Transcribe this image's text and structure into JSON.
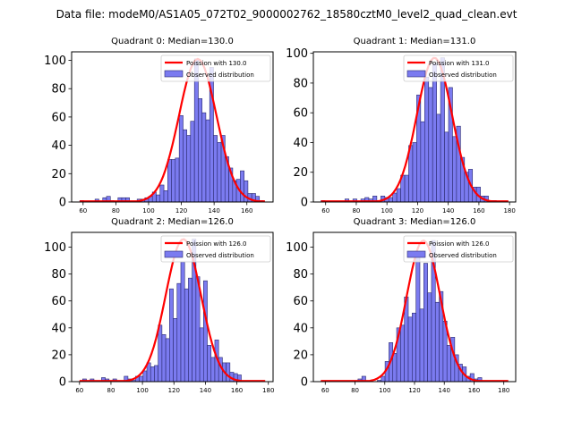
{
  "figure": {
    "suptitle": "Data file: modeM0/AS1A05_072T02_9000002762_18580cztM0_level2_quad_clean.evt"
  },
  "colors": {
    "bar_fill": "#7b7bf0",
    "bar_edge": "#2a2a6e",
    "poisson_line": "#ff0000"
  },
  "chart_data": [
    {
      "type": "bar",
      "title": "Quadrant 0: Median=130.0",
      "legend": {
        "line": "Poission with 130.0",
        "bars": "Observed distribution",
        "placement": "upper-right"
      },
      "xlim": [
        53,
        176
      ],
      "ylim": [
        0,
        106
      ],
      "xticks": [
        60,
        80,
        100,
        120,
        140,
        160
      ],
      "yticks": [
        0,
        20,
        40,
        60,
        80,
        100
      ],
      "bin_width": 2.35,
      "bins": [
        [
          58,
          1
        ],
        [
          60.3,
          0
        ],
        [
          62.6,
          0
        ],
        [
          65,
          0
        ],
        [
          67.3,
          2
        ],
        [
          69.6,
          0
        ],
        [
          72,
          3
        ],
        [
          74.3,
          4
        ],
        [
          76.6,
          1
        ],
        [
          79,
          0
        ],
        [
          81.3,
          3
        ],
        [
          83.6,
          3
        ],
        [
          86,
          3
        ],
        [
          88.3,
          0
        ],
        [
          90.7,
          0
        ],
        [
          93,
          2
        ],
        [
          95.3,
          2
        ],
        [
          97.7,
          3
        ],
        [
          100,
          4
        ],
        [
          102.3,
          7
        ],
        [
          104.7,
          5
        ],
        [
          107,
          12
        ],
        [
          109.3,
          8
        ],
        [
          111.7,
          30
        ],
        [
          114,
          30
        ],
        [
          116.3,
          31
        ],
        [
          118.7,
          61
        ],
        [
          121,
          51
        ],
        [
          123.3,
          47
        ],
        [
          125.6,
          57
        ],
        [
          128,
          101
        ],
        [
          130.3,
          73
        ],
        [
          132.6,
          63
        ],
        [
          135,
          58
        ],
        [
          137.3,
          95
        ],
        [
          139.6,
          47
        ],
        [
          142,
          42
        ],
        [
          144.3,
          47
        ],
        [
          146.6,
          32
        ],
        [
          149,
          24
        ],
        [
          151.3,
          15
        ],
        [
          153.6,
          16
        ],
        [
          156,
          22
        ],
        [
          158.3,
          15
        ],
        [
          160.6,
          6
        ],
        [
          163,
          6
        ],
        [
          165.3,
          4
        ],
        [
          167.7,
          1
        ]
      ],
      "poisson_mean": 130.0,
      "poisson_peak": 101
    },
    {
      "type": "bar",
      "title": "Quadrant 1: Median=131.0",
      "legend": {
        "line": "Poission with 131.0",
        "bars": "Observed distribution",
        "placement": "upper-right"
      },
      "xlim": [
        52,
        184
      ],
      "ylim": [
        0,
        101
      ],
      "xticks": [
        60,
        80,
        100,
        120,
        140,
        160,
        180
      ],
      "yticks": [
        0,
        20,
        40,
        60,
        80,
        100
      ],
      "bin_width": 2.6,
      "bins": [
        [
          57,
          1
        ],
        [
          59.6,
          0
        ],
        [
          62.2,
          0
        ],
        [
          64.8,
          0
        ],
        [
          67.4,
          0
        ],
        [
          70,
          0
        ],
        [
          72.6,
          2
        ],
        [
          75.2,
          0
        ],
        [
          77.8,
          2
        ],
        [
          80.4,
          0
        ],
        [
          83,
          2
        ],
        [
          85.6,
          3
        ],
        [
          88.2,
          2
        ],
        [
          90.8,
          4
        ],
        [
          93.4,
          1
        ],
        [
          96,
          4
        ],
        [
          98.6,
          3
        ],
        [
          101.2,
          3
        ],
        [
          103.8,
          6
        ],
        [
          106.4,
          9
        ],
        [
          109,
          18
        ],
        [
          111.6,
          18
        ],
        [
          114.2,
          38
        ],
        [
          116.8,
          40
        ],
        [
          119.4,
          72
        ],
        [
          122,
          54
        ],
        [
          124.6,
          84
        ],
        [
          127.2,
          77
        ],
        [
          129.8,
          93
        ],
        [
          132.4,
          59
        ],
        [
          135,
          97
        ],
        [
          137.6,
          47
        ],
        [
          140.2,
          77
        ],
        [
          142.8,
          44
        ],
        [
          145.4,
          51
        ],
        [
          148,
          30
        ],
        [
          150.6,
          20
        ],
        [
          153.2,
          22
        ],
        [
          155.8,
          10
        ],
        [
          158.4,
          10
        ],
        [
          161,
          4
        ],
        [
          163.6,
          4
        ],
        [
          166.2,
          1
        ],
        [
          168.8,
          1
        ],
        [
          171.4,
          0
        ],
        [
          174,
          0
        ],
        [
          176.6,
          0
        ]
      ],
      "poisson_mean": 131.0,
      "poisson_peak": 97
    },
    {
      "type": "bar",
      "title": "Quadrant 2: Median=126.0",
      "legend": {
        "line": "Poission with 126.0",
        "bars": "Observed distribution",
        "placement": "upper-right"
      },
      "xlim": [
        55,
        183
      ],
      "ylim": [
        0,
        111
      ],
      "xticks": [
        60,
        80,
        100,
        120,
        140,
        160,
        180
      ],
      "yticks": [
        0,
        20,
        40,
        60,
        80,
        100
      ],
      "bin_width": 2.4,
      "bins": [
        [
          62,
          2
        ],
        [
          64.4,
          0
        ],
        [
          66.8,
          2
        ],
        [
          69.2,
          0
        ],
        [
          71.6,
          0
        ],
        [
          74,
          3
        ],
        [
          76.4,
          2
        ],
        [
          78.8,
          0
        ],
        [
          81.2,
          2
        ],
        [
          83.6,
          0
        ],
        [
          86,
          0
        ],
        [
          88.4,
          4
        ],
        [
          90.8,
          2
        ],
        [
          93.2,
          1
        ],
        [
          95.6,
          4
        ],
        [
          98,
          4
        ],
        [
          100.4,
          8
        ],
        [
          102.8,
          14
        ],
        [
          105.2,
          11
        ],
        [
          107.6,
          12
        ],
        [
          110,
          42
        ],
        [
          112.4,
          35
        ],
        [
          114.8,
          32
        ],
        [
          117.2,
          69
        ],
        [
          119.6,
          47
        ],
        [
          122,
          73
        ],
        [
          124.4,
          89
        ],
        [
          126.8,
          69
        ],
        [
          129.2,
          77
        ],
        [
          131.6,
          106
        ],
        [
          134,
          78
        ],
        [
          136.4,
          40
        ],
        [
          138.8,
          75
        ],
        [
          141.2,
          27
        ],
        [
          143.6,
          18
        ],
        [
          146,
          31
        ],
        [
          148.4,
          18
        ],
        [
          150.8,
          14
        ],
        [
          153.2,
          14
        ],
        [
          155.6,
          7
        ],
        [
          158,
          6
        ],
        [
          160.4,
          5
        ],
        [
          162.8,
          0
        ]
      ],
      "poisson_mean": 126.0,
      "poisson_peak": 106
    },
    {
      "type": "bar",
      "title": "Quadrant 3: Median=126.0",
      "legend": {
        "line": "Poission with 126.0",
        "bars": "Observed distribution",
        "placement": "upper-right"
      },
      "xlim": [
        52,
        188
      ],
      "ylim": [
        0,
        111
      ],
      "xticks": [
        60,
        80,
        100,
        120,
        140,
        160,
        180
      ],
      "yticks": [
        0,
        20,
        40,
        60,
        80,
        100
      ],
      "bin_width": 2.6,
      "bins": [
        [
          82,
          2
        ],
        [
          84.6,
          4
        ],
        [
          87.2,
          0
        ],
        [
          89.8,
          0
        ],
        [
          92.4,
          0
        ],
        [
          95,
          1
        ],
        [
          97.6,
          4
        ],
        [
          100.2,
          15
        ],
        [
          102.8,
          29
        ],
        [
          105.4,
          21
        ],
        [
          108,
          40
        ],
        [
          110.6,
          42
        ],
        [
          113.2,
          63
        ],
        [
          115.8,
          48
        ],
        [
          118.4,
          51
        ],
        [
          121,
          96
        ],
        [
          123.6,
          54
        ],
        [
          126.2,
          88
        ],
        [
          128.8,
          66
        ],
        [
          131.4,
          105
        ],
        [
          134,
          59
        ],
        [
          136.6,
          67
        ],
        [
          139.2,
          45
        ],
        [
          141.8,
          27
        ],
        [
          144.4,
          33
        ],
        [
          147,
          20
        ],
        [
          149.6,
          13
        ],
        [
          152.2,
          11
        ],
        [
          154.8,
          4
        ],
        [
          157.4,
          6
        ],
        [
          160,
          2
        ],
        [
          162.6,
          3
        ],
        [
          165.2,
          0
        ]
      ],
      "poisson_mean": 126.0,
      "poisson_peak": 105
    }
  ]
}
